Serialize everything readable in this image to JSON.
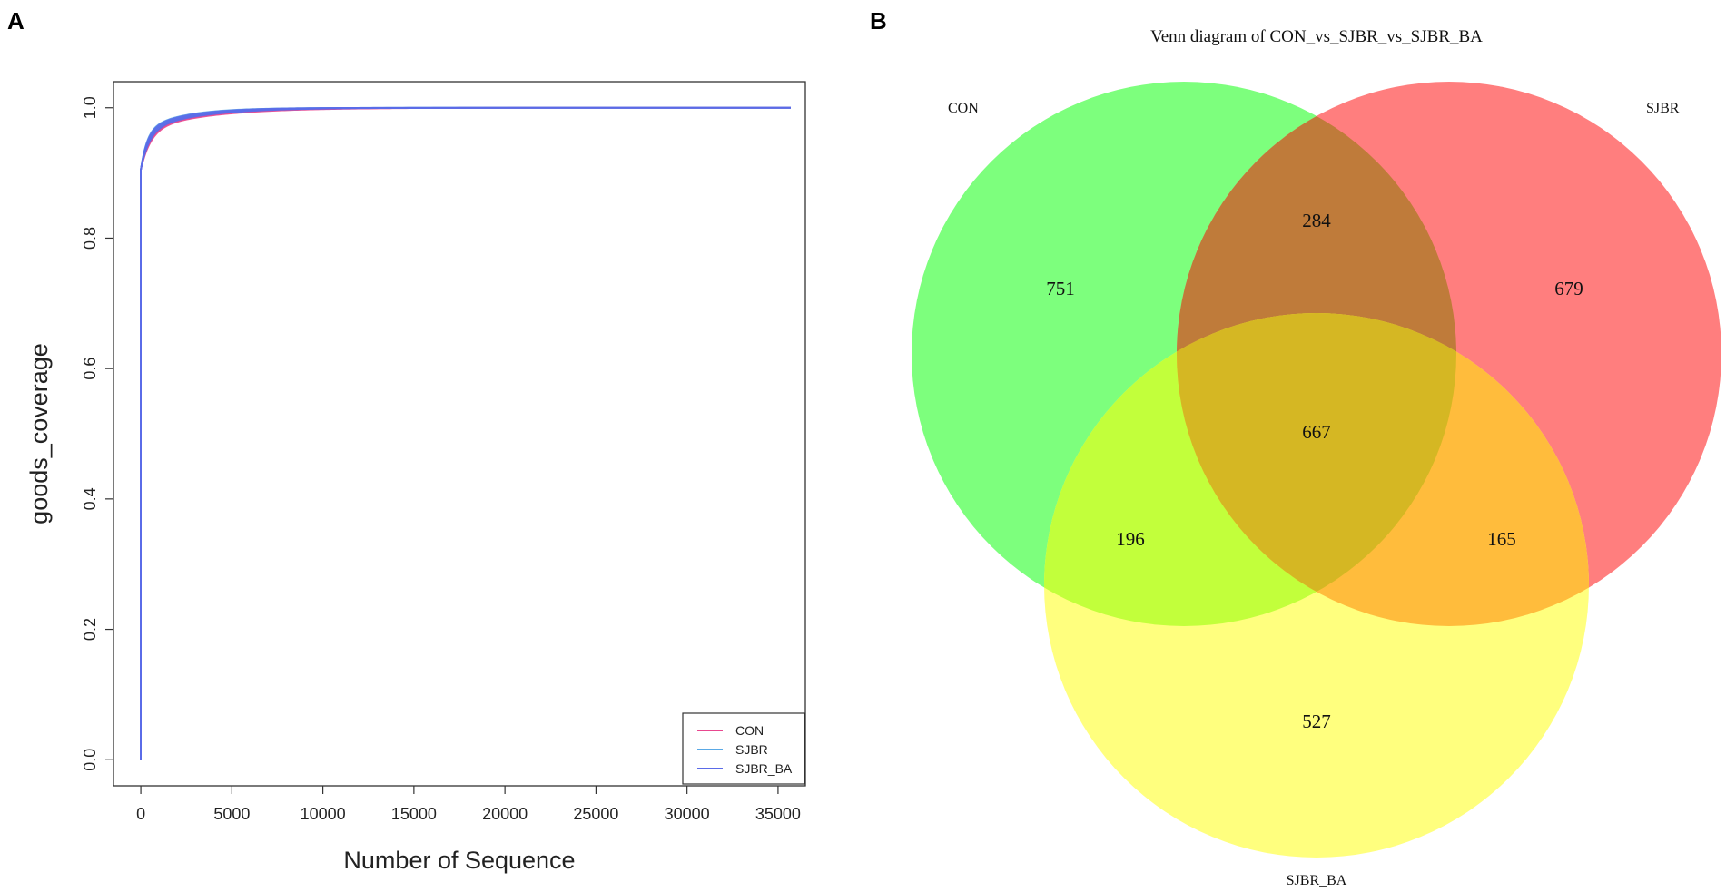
{
  "panel_a": {
    "letter": "A"
  },
  "panel_b": {
    "letter": "B"
  },
  "chart_data": [
    {
      "type": "line",
      "title": "",
      "xlabel": "Number of Sequence",
      "ylabel": "goods_coverage",
      "xlim": [
        -1500,
        36500
      ],
      "ylim": [
        -0.04,
        1.04
      ],
      "x_ticks": [
        0,
        5000,
        10000,
        15000,
        20000,
        25000,
        30000,
        35000
      ],
      "y_ticks": [
        0.0,
        0.2,
        0.4,
        0.6,
        0.8,
        1.0
      ],
      "y_tick_labels": [
        "0.0",
        "0.2",
        "0.4",
        "0.6",
        "0.8",
        "1.0"
      ],
      "legend_position": "bottom-right",
      "x_end": 35700,
      "series": [
        {
          "name": "CON",
          "color": "#e8478f",
          "decay_scales": [
            520,
            560,
            600
          ]
        },
        {
          "name": "SJBR",
          "color": "#5aa9e6",
          "decay_scales": [
            360,
            400,
            440
          ]
        },
        {
          "name": "SJBR_BA",
          "color": "#5b6be8",
          "decay_scales": [
            380,
            430,
            480,
            520
          ]
        }
      ]
    },
    {
      "type": "venn",
      "title": "Venn diagram of CON_vs_SJBR_vs_SJBR_BA",
      "sets": [
        {
          "name": "CON",
          "color": "#7dff7d"
        },
        {
          "name": "SJBR",
          "color": "#ff7e7e"
        },
        {
          "name": "SJBR_BA",
          "color": "#ffff7e"
        }
      ],
      "region_colors": {
        "con_sjbr": "#bf7b3a",
        "con_ba": "#c2ff3b",
        "sjbr_ba": "#ffbc3c",
        "all": "#d5b723"
      },
      "counts": {
        "con_only": 751,
        "sjbr_only": 679,
        "ba_only": 527,
        "con_sjbr": 284,
        "con_ba": 196,
        "sjbr_ba": 165,
        "all": 667
      }
    }
  ]
}
